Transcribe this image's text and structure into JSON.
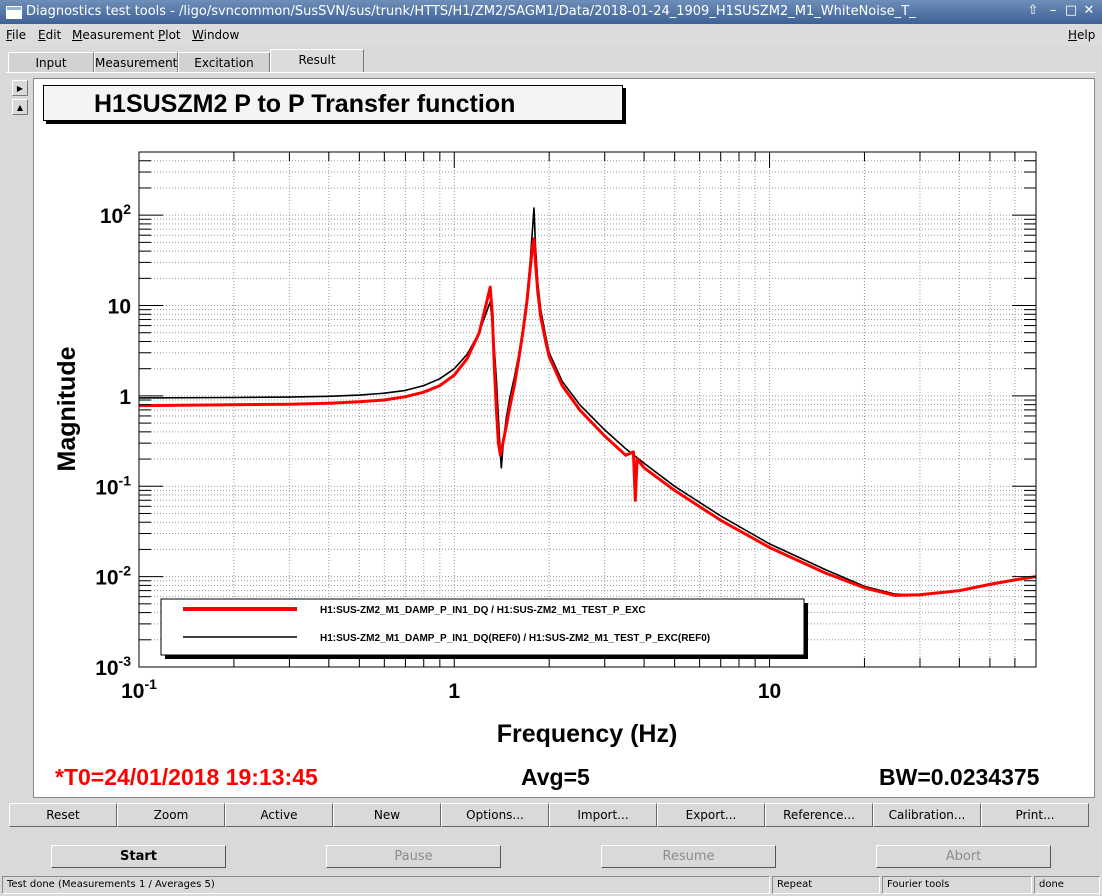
{
  "window": {
    "title": "Diagnostics test tools - /ligo/svncommon/SusSVN/sus/trunk/HTTS/H1/ZM2/SAGM1/Data/2018-01-24_1909_H1SUSZM2_M1_WhiteNoise_T_",
    "buttons": {
      "up": "⇧",
      "minimize": "–",
      "maximize": "□",
      "close": "✕"
    }
  },
  "menubar": {
    "items": [
      {
        "label": "File",
        "mnemonic": "F",
        "rest": "ile"
      },
      {
        "label": "Edit",
        "mnemonic": "E",
        "rest": "dit"
      },
      {
        "label": "Measurement",
        "mnemonic": "M",
        "rest": "easurement"
      },
      {
        "label": "Plot",
        "mnemonic": "P",
        "rest": "lot"
      },
      {
        "label": "Window",
        "mnemonic": "W",
        "rest": "indow"
      }
    ],
    "help": {
      "mnemonic": "H",
      "rest": "elp"
    }
  },
  "tabs": [
    "Input",
    "Measurement",
    "Excitation",
    "Result"
  ],
  "active_tab": "Result",
  "side_arrows": {
    "up": "▶",
    "down": "▲"
  },
  "status_line": {
    "t0": "*T0=24/01/2018 19:13:45",
    "avg": "Avg=5",
    "bw": "BW=0.0234375",
    "t0_color": "#ff0000"
  },
  "plot_buttons": [
    "Reset",
    "Zoom",
    "Active",
    "New",
    "Options...",
    "Import...",
    "Export...",
    "Reference...",
    "Calibration...",
    "Print..."
  ],
  "control_buttons": [
    {
      "label": "Start",
      "enabled": true
    },
    {
      "label": "Pause",
      "enabled": false
    },
    {
      "label": "Resume",
      "enabled": false
    },
    {
      "label": "Abort",
      "enabled": false
    }
  ],
  "statusbar": {
    "message": "Test done (Measurements 1 / Averages 5)",
    "repeat": "Repeat",
    "tool": "Fourier tools",
    "state": "done"
  },
  "chart_data": {
    "type": "line",
    "title": "H1SUSZM2 P to P Transfer function",
    "xlabel": "Frequency (Hz)",
    "ylabel": "Magnitude",
    "x_scale": "log",
    "y_scale": "log",
    "xlim": [
      0.1,
      70
    ],
    "ylim": [
      0.001,
      500
    ],
    "grid": true,
    "x_tick_labels": [
      {
        "value": 0.1,
        "base": "10",
        "exp": "-1"
      },
      {
        "value": 1,
        "base": "1",
        "exp": ""
      },
      {
        "value": 10,
        "base": "10",
        "exp": ""
      }
    ],
    "y_tick_labels": [
      {
        "value": 0.001,
        "base": "10",
        "exp": "-3"
      },
      {
        "value": 0.01,
        "base": "10",
        "exp": "-2"
      },
      {
        "value": 0.1,
        "base": "10",
        "exp": "-1"
      },
      {
        "value": 1,
        "base": "1",
        "exp": ""
      },
      {
        "value": 10,
        "base": "10",
        "exp": ""
      },
      {
        "value": 100,
        "base": "10",
        "exp": "2"
      }
    ],
    "legend_placement": "bottom-left",
    "series": [
      {
        "name": "H1:SUS-ZM2_M1_DAMP_P_IN1_DQ / H1:SUS-ZM2_M1_TEST_P_EXC",
        "color": "#ff0000",
        "x": [
          0.1,
          0.2,
          0.3,
          0.4,
          0.5,
          0.6,
          0.7,
          0.8,
          0.9,
          1.0,
          1.1,
          1.2,
          1.25,
          1.3,
          1.32,
          1.34,
          1.36,
          1.38,
          1.4,
          1.42,
          1.46,
          1.5,
          1.55,
          1.6,
          1.65,
          1.7,
          1.74,
          1.77,
          1.79,
          1.81,
          1.84,
          1.88,
          1.95,
          2.0,
          2.2,
          2.5,
          3.0,
          3.5,
          3.7,
          3.75,
          3.8,
          4.0,
          5.0,
          7.0,
          10.0,
          15.0,
          20.0,
          25.0,
          30.0,
          40.0,
          50.0,
          60.0,
          70.0
        ],
        "y": [
          0.78,
          0.8,
          0.81,
          0.83,
          0.86,
          0.9,
          0.98,
          1.1,
          1.3,
          1.7,
          2.6,
          5.0,
          9.0,
          16.0,
          8.0,
          2.0,
          0.7,
          0.3,
          0.22,
          0.28,
          0.45,
          0.75,
          1.3,
          2.5,
          5.0,
          11.0,
          25.0,
          45.0,
          55.0,
          30.0,
          14.0,
          7.5,
          4.0,
          2.7,
          1.3,
          0.7,
          0.36,
          0.22,
          0.24,
          0.07,
          0.2,
          0.16,
          0.09,
          0.042,
          0.021,
          0.011,
          0.0075,
          0.0062,
          0.0063,
          0.007,
          0.0082,
          0.0092,
          0.01
        ]
      },
      {
        "name": "H1:SUS-ZM2_M1_DAMP_P_IN1_DQ(REF0) / H1:SUS-ZM2_M1_TEST_P_EXC(REF0)",
        "color": "#000000",
        "x": [
          0.1,
          0.2,
          0.3,
          0.4,
          0.5,
          0.6,
          0.7,
          0.8,
          0.9,
          1.0,
          1.1,
          1.2,
          1.25,
          1.3,
          1.33,
          1.36,
          1.39,
          1.41,
          1.43,
          1.46,
          1.5,
          1.55,
          1.6,
          1.65,
          1.7,
          1.74,
          1.77,
          1.79,
          1.81,
          1.84,
          1.88,
          1.95,
          2.0,
          2.2,
          2.5,
          3.0,
          3.5,
          4.0,
          5.0,
          7.0,
          10.0,
          15.0,
          20.0,
          25.0,
          30.0
        ],
        "y": [
          0.95,
          0.96,
          0.97,
          0.99,
          1.02,
          1.07,
          1.15,
          1.3,
          1.55,
          2.0,
          2.9,
          5.0,
          7.5,
          11.0,
          5.0,
          1.5,
          0.35,
          0.16,
          0.3,
          0.55,
          0.95,
          1.6,
          2.8,
          5.5,
          12.0,
          30.0,
          70.0,
          120.0,
          45.0,
          18.0,
          9.0,
          4.6,
          3.0,
          1.45,
          0.8,
          0.42,
          0.26,
          0.18,
          0.1,
          0.047,
          0.023,
          0.012,
          0.0078,
          0.0064,
          0.0062
        ]
      }
    ]
  }
}
